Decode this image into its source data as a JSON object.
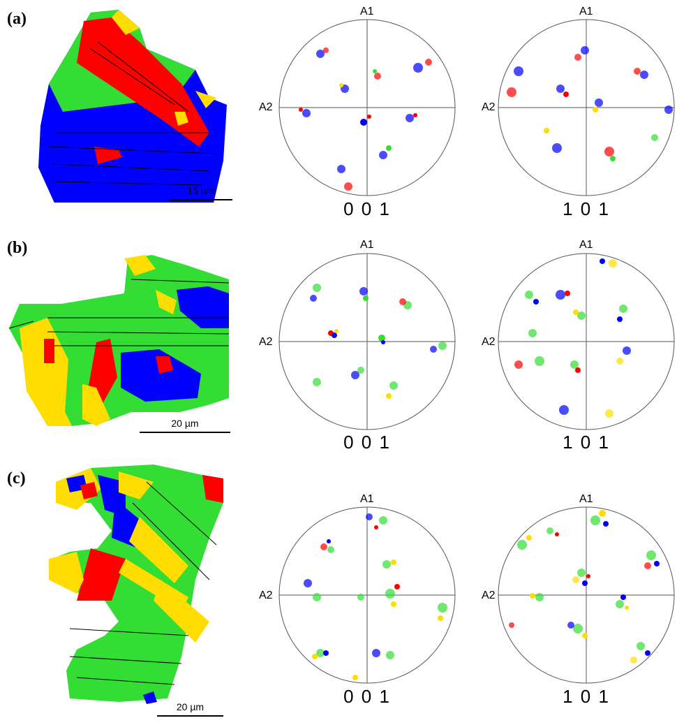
{
  "panels": [
    {
      "label": "(a)",
      "scale_bar": "15 µm",
      "pole_figures": [
        {
          "miller": "0 0 1",
          "axis_top": "A1",
          "axis_left": "A2"
        },
        {
          "miller": "1 0 1",
          "axis_top": "A1",
          "axis_left": "A2"
        }
      ]
    },
    {
      "label": "(b)",
      "scale_bar": "20 µm",
      "pole_figures": [
        {
          "miller": "0 0 1",
          "axis_top": "A1",
          "axis_left": "A2"
        },
        {
          "miller": "1 0 1",
          "axis_top": "A1",
          "axis_left": "A2"
        }
      ]
    },
    {
      "label": "(c)",
      "scale_bar": "20 µm",
      "pole_figures": [
        {
          "miller": "0 0 1",
          "axis_top": "A1",
          "axis_left": "A2"
        },
        {
          "miller": "1 0 1",
          "axis_top": "A1",
          "axis_left": "A2"
        }
      ]
    }
  ],
  "colors": {
    "red": "#ff0000",
    "green": "#33dd33",
    "blue": "#0000ff",
    "yellow": "#ffdd00",
    "boundary": "#000000"
  }
}
